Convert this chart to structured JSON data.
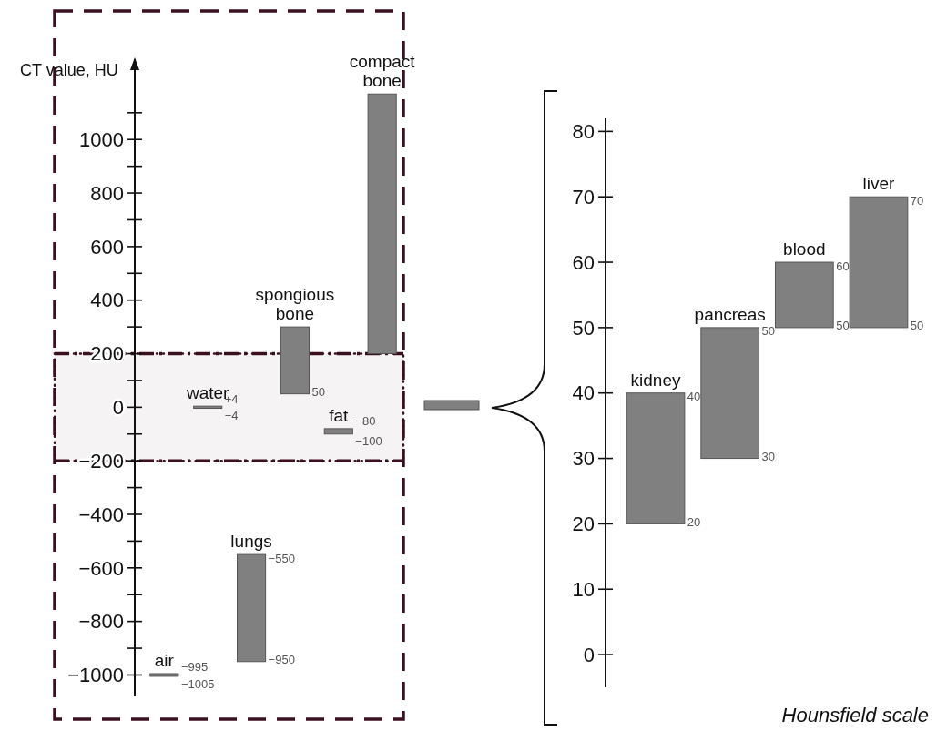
{
  "chart_data": [
    {
      "type": "bar",
      "ylabel": "CT value, HU",
      "categories": [
        "air",
        "water",
        "lungs",
        "spongious bone",
        "fat",
        "compact bone"
      ],
      "base": [
        -1005,
        -4,
        -950,
        50,
        -100,
        200
      ],
      "values": [
        10,
        8,
        400,
        250,
        20,
        970
      ],
      "color": "#808080",
      "ylim": [
        -1080,
        1300
      ],
      "yticks": [
        -1000,
        {
          "value": -900,
          "label": null
        },
        -800,
        {
          "value": -700,
          "label": null
        },
        -600,
        {
          "value": -500,
          "label": null
        },
        -400,
        {
          "value": -300,
          "label": null
        },
        -200,
        {
          "value": -100,
          "label": null
        },
        0,
        {
          "value": 100,
          "label": null
        },
        200,
        {
          "value": 300,
          "label": null
        },
        400,
        {
          "value": 500,
          "label": null
        },
        600,
        {
          "value": 700,
          "label": null
        },
        800,
        {
          "value": 900,
          "label": null
        },
        1000,
        {
          "value": 1100,
          "label": null
        }
      ],
      "bands": [
        {
          "axis": "y",
          "from": -200,
          "to": 200,
          "color": "#3a1020"
        }
      ],
      "annotations": [
        {
          "text": "−995",
          "x": "air",
          "y": -995
        },
        {
          "text": "−1005",
          "x": "air",
          "y": -1005
        },
        {
          "text": "+4",
          "x": "water",
          "y": 4
        },
        {
          "text": "−4",
          "x": "water",
          "y": -4
        },
        {
          "text": "−550",
          "x": "lungs",
          "y": -550
        },
        {
          "text": "−950",
          "x": "lungs",
          "y": -950
        },
        {
          "text": "50",
          "x": "spongious bone",
          "y": 50
        },
        {
          "text": "−80",
          "x": "fat",
          "y": -80
        },
        {
          "text": "−100",
          "x": "fat",
          "y": -100
        }
      ]
    },
    {
      "type": "bar",
      "categories": [
        "kidney",
        "pancreas",
        "blood",
        "liver"
      ],
      "base": [
        20,
        30,
        50,
        50
      ],
      "values": [
        20,
        20,
        10,
        20
      ],
      "color": "#808080",
      "ylim": [
        -5,
        82
      ],
      "yticks": [
        0,
        10,
        20,
        30,
        40,
        50,
        60,
        70,
        80
      ],
      "annotations": [
        {
          "text": "40",
          "x": "kidney",
          "y": 40
        },
        {
          "text": "20",
          "x": "kidney",
          "y": 20
        },
        {
          "text": "50",
          "x": "pancreas",
          "y": 50
        },
        {
          "text": "30",
          "x": "pancreas",
          "y": 30
        },
        {
          "text": "60",
          "x": "blood",
          "y": 60
        },
        {
          "text": "50",
          "x": "blood",
          "y": 50
        },
        {
          "text": "70",
          "x": "liver",
          "y": 70
        },
        {
          "text": "50",
          "x": "liver",
          "y": 50
        },
        "Hounsfield scale"
      ]
    }
  ]
}
